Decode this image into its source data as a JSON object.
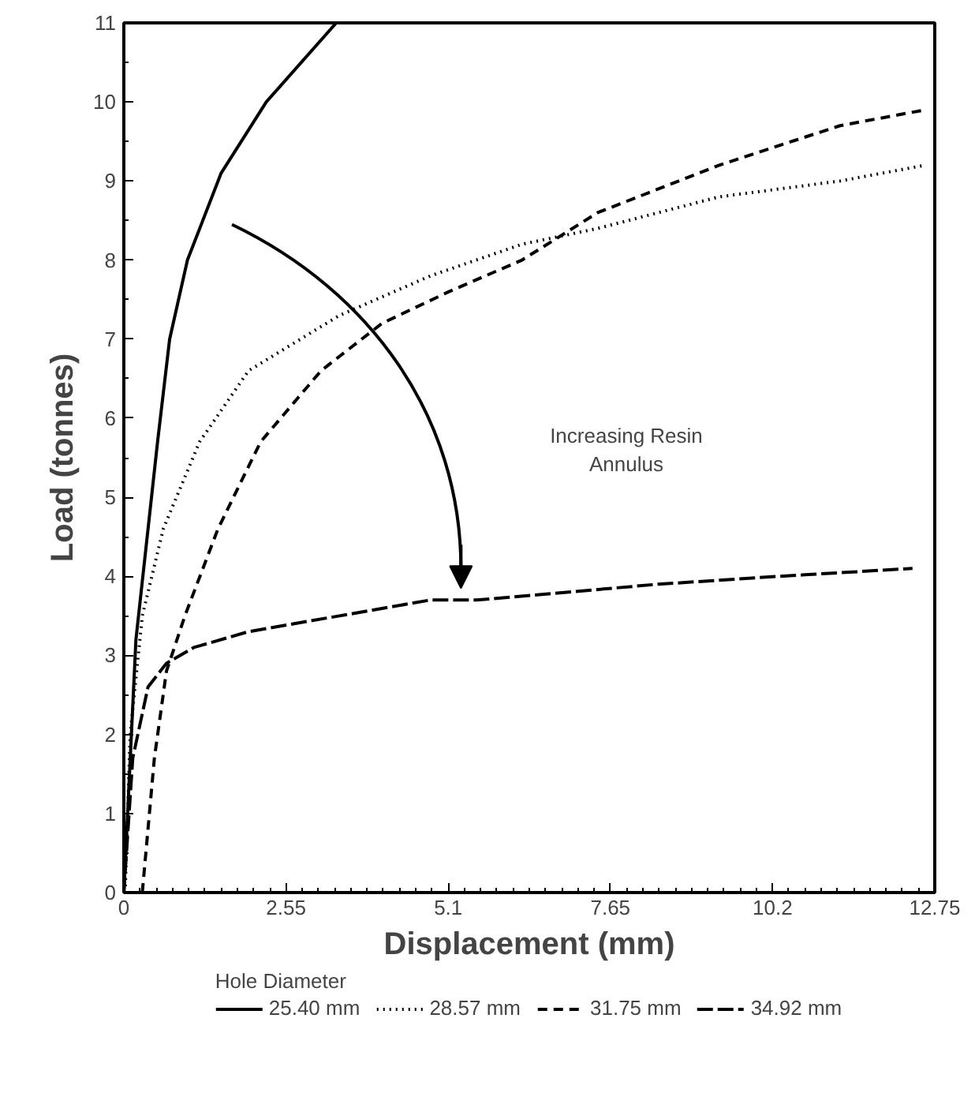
{
  "chart_data": {
    "type": "line",
    "xlabel": "Displacement (mm)",
    "ylabel": "Load (tonnes)",
    "legend_title": "Hole Diameter",
    "xlim": [
      0,
      12.75
    ],
    "ylim": [
      0,
      11
    ],
    "xticks": [
      0,
      2.55,
      5.1,
      7.65,
      10.2,
      12.75
    ],
    "yticks": [
      0,
      1,
      2,
      3,
      4,
      5,
      6,
      7,
      8,
      9,
      10,
      11
    ],
    "grid": false,
    "legend": "bottom",
    "marker": "none",
    "annotations": [
      "Increasing Resin\nAnnulus"
    ],
    "series": [
      {
        "name": "25.40 mm",
        "color": "#000000",
        "line_style": "solid",
        "x": [
          0,
          0.19,
          0.53,
          0.72,
          1.0,
          1.53,
          2.24,
          3.34
        ],
        "values": [
          0,
          3.2,
          5.7,
          7.0,
          8.0,
          9.1,
          10.0,
          11
        ]
      },
      {
        "name": "28.57 mm",
        "color": "#000000",
        "line_style": "dotted",
        "x": [
          0.02,
          0.1,
          0.29,
          0.62,
          1.19,
          1.96,
          3.39,
          4.82,
          6.26,
          7.45,
          9.36,
          11.26,
          12.6
        ],
        "values": [
          0,
          2.0,
          3.5,
          4.6,
          5.7,
          6.6,
          7.3,
          7.8,
          8.2,
          8.4,
          8.8,
          9.0,
          9.2
        ]
      },
      {
        "name": "31.75 mm",
        "color": "#000000",
        "line_style": "dashed",
        "x": [
          0.29,
          0.48,
          0.67,
          0.96,
          1.48,
          2.15,
          3.1,
          4.06,
          5.11,
          6.26,
          7.45,
          9.36,
          11.26,
          12.6
        ],
        "values": [
          0,
          1.7,
          2.8,
          3.5,
          4.6,
          5.7,
          6.6,
          7.2,
          7.6,
          8.0,
          8.6,
          9.2,
          9.7,
          9.9
        ]
      },
      {
        "name": "34.92 mm",
        "color": "#000000",
        "line_style": "longdashed",
        "x": [
          0,
          0.14,
          0.38,
          0.67,
          1.1,
          1.96,
          3.39,
          4.82,
          5.55,
          8.4,
          10.3,
          12.4
        ],
        "values": [
          0,
          1.7,
          2.6,
          2.9,
          3.1,
          3.3,
          3.5,
          3.7,
          3.7,
          3.9,
          4.0,
          4.1
        ]
      }
    ]
  }
}
